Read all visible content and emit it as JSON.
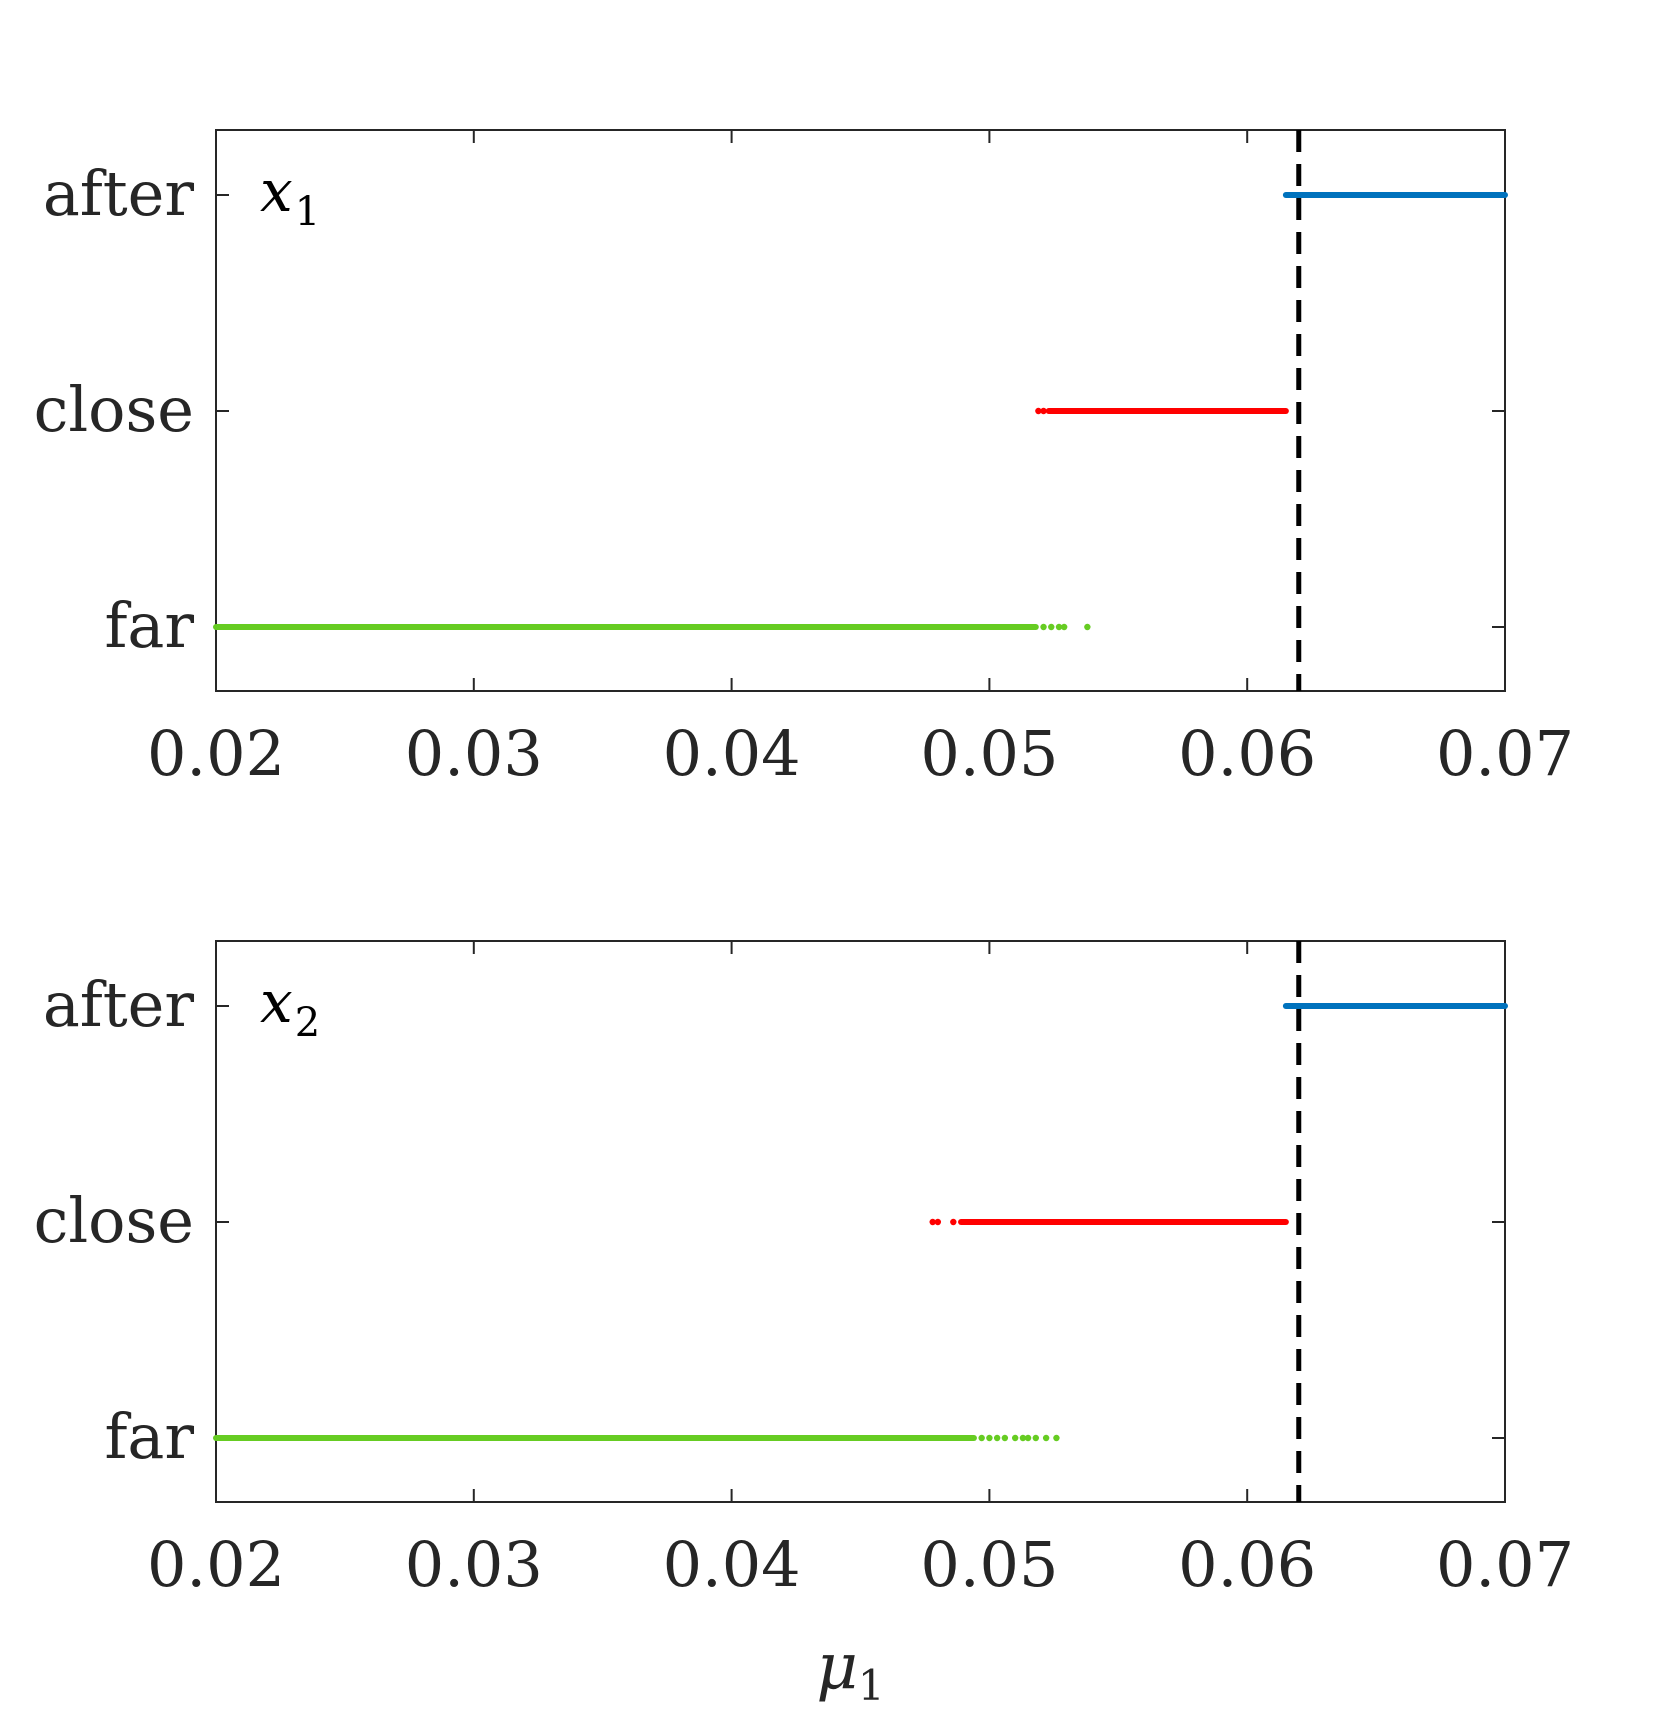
{
  "chart_data": [
    {
      "type": "scatter",
      "panel_label": "x",
      "panel_label_sub": "1",
      "xlabel": "",
      "xlim": [
        0.02,
        0.07
      ],
      "xticks": [
        0.02,
        0.03,
        0.04,
        0.05,
        0.06,
        0.07
      ],
      "xtick_labels": [
        "0.02",
        "0.03",
        "0.04",
        "0.05",
        "0.06",
        "0.07"
      ],
      "categories": [
        "far",
        "close",
        "after"
      ],
      "threshold": 0.062,
      "series": [
        {
          "category": "after",
          "color": "#0072BD",
          "segments": [
            [
              0.0615,
              0.07
            ]
          ],
          "points": []
        },
        {
          "category": "close",
          "color": "#FF0000",
          "segments": [
            [
              0.0523,
              0.0615
            ]
          ],
          "points": [
            0.0519,
            0.0521
          ]
        },
        {
          "category": "far",
          "color": "#66CC22",
          "segments": [
            [
              0.02,
              0.0518
            ]
          ],
          "points": [
            0.0521,
            0.0524,
            0.0527,
            0.0529,
            0.0538
          ]
        }
      ]
    },
    {
      "type": "scatter",
      "panel_label": "x",
      "panel_label_sub": "2",
      "xlabel": "μ",
      "xlabel_sub": "1",
      "xlim": [
        0.02,
        0.07
      ],
      "xticks": [
        0.02,
        0.03,
        0.04,
        0.05,
        0.06,
        0.07
      ],
      "xtick_labels": [
        "0.02",
        "0.03",
        "0.04",
        "0.05",
        "0.06",
        "0.07"
      ],
      "categories": [
        "far",
        "close",
        "after"
      ],
      "threshold": 0.062,
      "series": [
        {
          "category": "after",
          "color": "#0072BD",
          "segments": [
            [
              0.0615,
              0.07
            ]
          ],
          "points": []
        },
        {
          "category": "close",
          "color": "#FF0000",
          "segments": [
            [
              0.0489,
              0.0615
            ]
          ],
          "points": [
            0.0478,
            0.048,
            0.0486
          ]
        },
        {
          "category": "far",
          "color": "#66CC22",
          "segments": [
            [
              0.02,
              0.0494
            ]
          ],
          "points": [
            0.0497,
            0.05,
            0.0503,
            0.0506,
            0.051,
            0.0513,
            0.0515,
            0.0518,
            0.0522,
            0.0526
          ]
        }
      ]
    }
  ]
}
